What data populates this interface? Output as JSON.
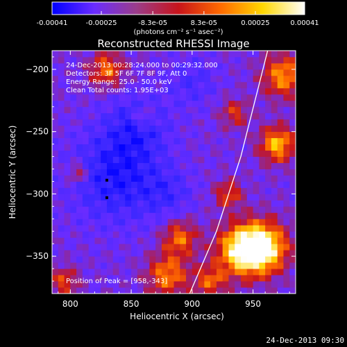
{
  "chart_data": {
    "type": "heatmap",
    "title": "Reconstructed RHESSI Image",
    "xlabel": "Heliocentric X (arcsec)",
    "ylabel": "Heliocentric Y (arcsec)",
    "xlim": [
      785,
      985
    ],
    "ylim": [
      -380,
      -185
    ],
    "x_ticks": [
      800,
      850,
      900,
      950
    ],
    "y_ticks": [
      -200,
      -250,
      -300,
      -350
    ],
    "colorbar": {
      "ticks": [
        -0.00041,
        -0.00025,
        -8.3e-05,
        8.3e-05,
        0.00025,
        0.00041
      ],
      "tick_labels": [
        "-0.00041",
        "-0.00025",
        "-8.3e-05",
        "8.3e-05",
        "0.00025",
        "0.00041"
      ],
      "unit_label": "(photons cm⁻² s⁻¹ asec⁻²)",
      "range": [
        -0.00041,
        0.00041
      ],
      "colors": [
        "#0000ff",
        "#6a2cff",
        "#9b3d8a",
        "#c8141b",
        "#ff6a00",
        "#ffd700",
        "#ffffff"
      ]
    },
    "annotations": {
      "time_range": "24-Dec-2013 00:28:24.000 to 00:29:32.000",
      "detectors": "Detectors: 3F 5F 6F 7F 8F 9F, Att 0",
      "energy": "Energy Range: 25.0 - 50.0 keV",
      "clean": "Clean    Total counts: 1.95E+03",
      "peak": "Position of Peak = [958,-343]"
    },
    "peak_position": [
      958,
      -343
    ],
    "limb_arc_points": [
      [
        898,
        -380
      ],
      [
        920,
        -330
      ],
      [
        940,
        -270
      ],
      [
        962,
        -185
      ]
    ],
    "markers": [
      [
        830,
        -289
      ],
      [
        830,
        -303
      ]
    ],
    "hotspots": [
      {
        "x": 958,
        "y": -343,
        "amp": 1.0,
        "r": 14
      },
      {
        "x": 940,
        "y": -345,
        "amp": 0.85,
        "r": 14
      },
      {
        "x": 970,
        "y": -260,
        "amp": 0.75,
        "r": 10
      },
      {
        "x": 975,
        "y": -205,
        "amp": 0.65,
        "r": 12
      },
      {
        "x": 830,
        "y": -200,
        "amp": 0.55,
        "r": 10
      },
      {
        "x": 890,
        "y": -335,
        "amp": 0.55,
        "r": 10
      },
      {
        "x": 880,
        "y": -365,
        "amp": 0.6,
        "r": 12
      },
      {
        "x": 795,
        "y": -370,
        "amp": 0.45,
        "r": 8
      },
      {
        "x": 806,
        "y": -283,
        "amp": 0.45,
        "r": 6
      },
      {
        "x": 935,
        "y": -235,
        "amp": 0.4,
        "r": 8
      },
      {
        "x": 930,
        "y": -300,
        "amp": 0.45,
        "r": 8
      },
      {
        "x": 915,
        "y": -370,
        "amp": 0.5,
        "r": 9
      },
      {
        "x": 860,
        "y": -238,
        "amp": 0.35,
        "r": 6
      }
    ],
    "coldspots": [
      {
        "x": 838,
        "y": -285,
        "amp": 1.0,
        "r": 26
      },
      {
        "x": 855,
        "y": -245,
        "amp": 0.7,
        "r": 18
      },
      {
        "x": 900,
        "y": -210,
        "amp": 0.5,
        "r": 14
      },
      {
        "x": 880,
        "y": -300,
        "amp": 0.5,
        "r": 14
      }
    ]
  },
  "footer": {
    "timestamp": "24-Dec-2013 09:30"
  }
}
